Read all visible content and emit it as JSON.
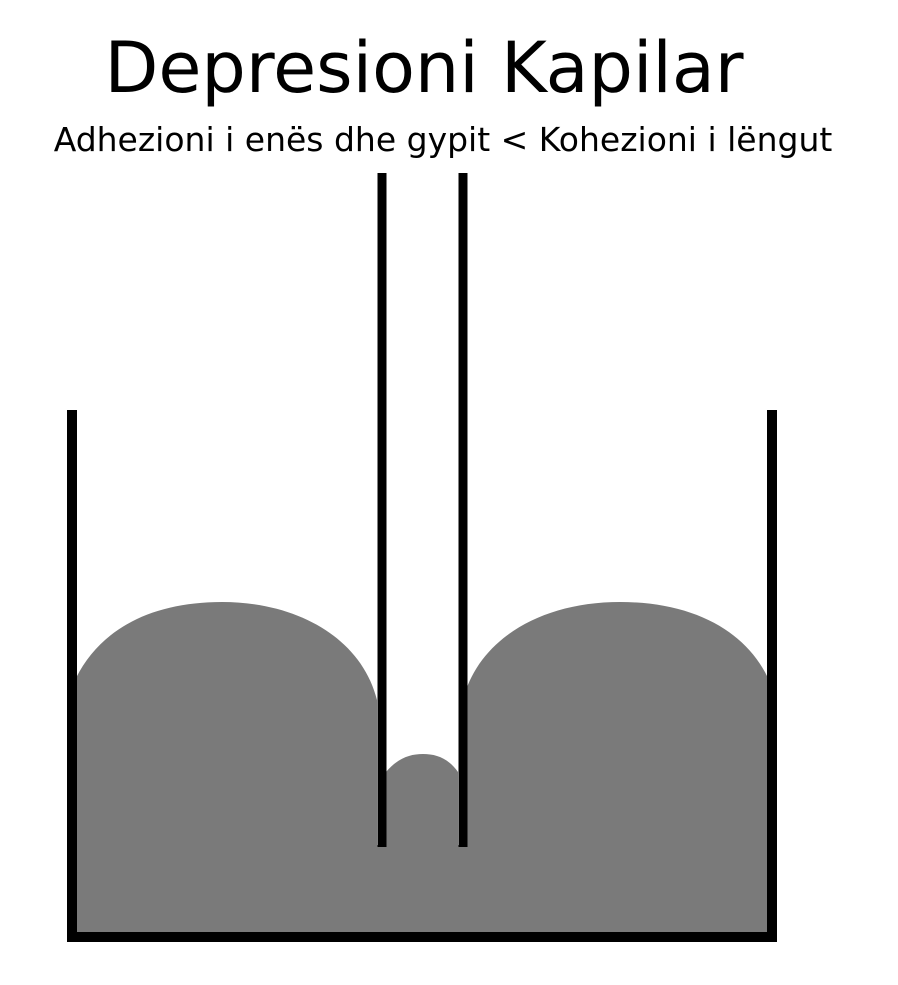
{
  "title": "Depresioni Kapilar",
  "subtitle": "Adhezioni i enës dhe gypit < Kohezioni i lëngut",
  "colors": {
    "liquid": "#7a7a7a",
    "walls": "#000000",
    "background": "#ffffff"
  }
}
